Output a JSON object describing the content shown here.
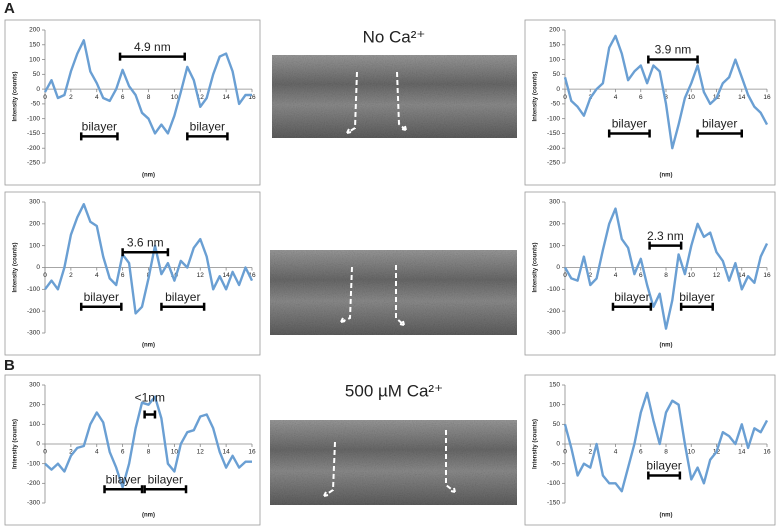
{
  "figure": {
    "panel_a": "A",
    "panel_b": "B",
    "condition_a": "No Ca²⁺",
    "condition_b": "500 µM Ca²⁺"
  },
  "chart_data": [
    {
      "type": "line",
      "ylabel": "Intensity (counts)",
      "xlabel": "(nm)",
      "xlim": [
        0,
        16
      ],
      "xticks": [
        0,
        2,
        4,
        6,
        8,
        10,
        12,
        14,
        16
      ],
      "ylim": [
        -250,
        200
      ],
      "yticks": [
        -250,
        -200,
        -150,
        -100,
        -50,
        0,
        50,
        100,
        150,
        200
      ],
      "grid": false,
      "x": [
        0,
        0.5,
        1,
        1.5,
        2,
        2.5,
        3,
        3.5,
        4,
        4.5,
        5,
        5.5,
        6,
        6.5,
        7,
        7.5,
        8,
        8.5,
        9,
        9.5,
        10,
        10.5,
        11,
        11.5,
        12,
        12.5,
        13,
        13.5,
        14,
        14.5,
        15,
        15.5,
        16
      ],
      "series": [
        {
          "color": "#6a9fd3",
          "values": [
            -10,
            30,
            -30,
            -20,
            60,
            120,
            165,
            60,
            20,
            -30,
            -40,
            0,
            65,
            10,
            -20,
            -80,
            -100,
            -150,
            -120,
            -150,
            -90,
            -10,
            75,
            30,
            -60,
            -30,
            50,
            110,
            120,
            60,
            -50,
            -20,
            -20
          ]
        }
      ],
      "annotations": [
        {
          "text": "4.9 nm",
          "x": [
            5.8,
            10.8
          ],
          "y": 110
        },
        {
          "text": "bilayer",
          "x": [
            2.8,
            5.6
          ],
          "y": -160
        },
        {
          "text": "bilayer",
          "x": [
            11,
            14.1
          ],
          "y": -160
        }
      ]
    },
    {
      "type": "line",
      "ylabel": "Intensity (counts)",
      "xlabel": "(nm)",
      "xlim": [
        0,
        16
      ],
      "xticks": [
        0,
        2,
        4,
        6,
        8,
        10,
        12,
        14,
        16
      ],
      "ylim": [
        -250,
        200
      ],
      "yticks": [
        -250,
        -200,
        -150,
        -100,
        -50,
        0,
        50,
        100,
        150,
        200
      ],
      "grid": false,
      "x": [
        0,
        0.5,
        1,
        1.5,
        2,
        2.5,
        3,
        3.5,
        4,
        4.5,
        5,
        5.5,
        6,
        6.5,
        7,
        7.5,
        8,
        8.5,
        9,
        9.5,
        10,
        10.5,
        11,
        11.5,
        12,
        12.5,
        13,
        13.5,
        14,
        14.5,
        15,
        15.5,
        16
      ],
      "series": [
        {
          "color": "#6a9fd3",
          "values": [
            40,
            -40,
            -60,
            -90,
            -30,
            0,
            20,
            140,
            180,
            120,
            30,
            60,
            80,
            20,
            80,
            60,
            -50,
            -200,
            -120,
            -30,
            20,
            80,
            -10,
            -50,
            -30,
            20,
            40,
            100,
            40,
            -20,
            -60,
            -80,
            -120
          ]
        }
      ],
      "annotations": [
        {
          "text": "3.9 nm",
          "x": [
            6.6,
            10.5
          ],
          "y": 100
        },
        {
          "text": "bilayer",
          "x": [
            3.5,
            6.7
          ],
          "y": -150
        },
        {
          "text": "bilayer",
          "x": [
            10.5,
            14
          ],
          "y": -150
        }
      ]
    },
    {
      "type": "line",
      "ylabel": "Intensity (counts)",
      "xlabel": "(nm)",
      "xlim": [
        0,
        16
      ],
      "xticks": [
        0,
        2,
        4,
        6,
        8,
        10,
        12,
        14,
        16
      ],
      "ylim": [
        -300,
        300
      ],
      "yticks": [
        -300,
        -200,
        -100,
        0,
        100,
        200,
        300
      ],
      "grid": false,
      "x": [
        0,
        0.5,
        1,
        1.5,
        2,
        2.5,
        3,
        3.5,
        4,
        4.5,
        5,
        5.5,
        6,
        6.5,
        7,
        7.5,
        8,
        8.5,
        9,
        9.5,
        10,
        10.5,
        11,
        11.5,
        12,
        12.5,
        13,
        13.5,
        14,
        14.5,
        15,
        15.5,
        16
      ],
      "series": [
        {
          "color": "#6a9fd3",
          "values": [
            -100,
            -60,
            -100,
            0,
            150,
            230,
            290,
            210,
            190,
            50,
            -50,
            -80,
            60,
            20,
            -210,
            -180,
            -50,
            100,
            -30,
            20,
            -60,
            30,
            0,
            90,
            130,
            50,
            -100,
            -40,
            -100,
            -20,
            -80,
            0,
            -60
          ]
        }
      ],
      "annotations": [
        {
          "text": "3.6 nm",
          "x": [
            6,
            9.5
          ],
          "y": 70
        },
        {
          "text": "bilayer",
          "x": [
            2.8,
            5.9
          ],
          "y": -180
        },
        {
          "text": "bilayer",
          "x": [
            9,
            12.3
          ],
          "y": -180
        }
      ]
    },
    {
      "type": "line",
      "ylabel": "Intensity (counts)",
      "xlabel": "(nm)",
      "xlim": [
        0,
        16
      ],
      "xticks": [
        0,
        2,
        4,
        6,
        8,
        10,
        12,
        14,
        16
      ],
      "ylim": [
        -300,
        300
      ],
      "yticks": [
        -300,
        -200,
        -100,
        0,
        100,
        200,
        300
      ],
      "grid": false,
      "x": [
        0,
        0.5,
        1,
        1.5,
        2,
        2.5,
        3,
        3.5,
        4,
        4.5,
        5,
        5.5,
        6,
        6.5,
        7,
        7.5,
        8,
        8.5,
        9,
        9.5,
        10,
        10.5,
        11,
        11.5,
        12,
        12.5,
        13,
        13.5,
        14,
        14.5,
        15,
        15.5,
        16
      ],
      "series": [
        {
          "color": "#6a9fd3",
          "values": [
            0,
            -50,
            -60,
            50,
            -80,
            -50,
            80,
            200,
            270,
            130,
            90,
            -30,
            40,
            -80,
            -180,
            -120,
            -280,
            -150,
            60,
            -30,
            100,
            200,
            140,
            160,
            70,
            30,
            -60,
            20,
            -100,
            -40,
            -70,
            50,
            110
          ]
        }
      ],
      "annotations": [
        {
          "text": "2.3 nm",
          "x": [
            6.7,
            9.2
          ],
          "y": 100
        },
        {
          "text": "bilayer",
          "x": [
            3.8,
            6.8
          ],
          "y": -180
        },
        {
          "text": "bilayer",
          "x": [
            9.2,
            11.7
          ],
          "y": -180
        }
      ]
    },
    {
      "type": "line",
      "ylabel": "Intensity (counts)",
      "xlabel": "(nm)",
      "xlim": [
        0,
        16
      ],
      "xticks": [
        0,
        2,
        4,
        6,
        8,
        10,
        12,
        14,
        16
      ],
      "ylim": [
        -300,
        300
      ],
      "yticks": [
        -300,
        -200,
        -100,
        0,
        100,
        200,
        300
      ],
      "grid": false,
      "x": [
        0,
        0.5,
        1,
        1.5,
        2,
        2.5,
        3,
        3.5,
        4,
        4.5,
        5,
        5.5,
        6,
        6.5,
        7,
        7.5,
        8,
        8.5,
        9,
        9.5,
        10,
        10.5,
        11,
        11.5,
        12,
        12.5,
        13,
        13.5,
        14,
        14.5,
        15,
        15.5,
        16
      ],
      "series": [
        {
          "color": "#6a9fd3",
          "values": [
            -100,
            -130,
            -100,
            -140,
            -60,
            -20,
            -10,
            100,
            160,
            110,
            -40,
            -120,
            -220,
            -100,
            80,
            210,
            200,
            240,
            130,
            -100,
            -140,
            0,
            60,
            70,
            140,
            150,
            80,
            -40,
            -120,
            -60,
            -120,
            -90,
            -90
          ]
        }
      ],
      "annotations": [
        {
          "text": "<1nm",
          "x": [
            7.7,
            8.5
          ],
          "y": 150
        },
        {
          "text": "bilayer",
          "x": [
            4.6,
            7.5
          ],
          "y": -230
        },
        {
          "text": "bilayer",
          "x": [
            7.7,
            10.9
          ],
          "y": -230
        }
      ]
    },
    {
      "type": "line",
      "ylabel": "Intensity (counts)",
      "xlabel": "(nm)",
      "xlim": [
        0,
        16
      ],
      "xticks": [
        0,
        2,
        4,
        6,
        8,
        10,
        12,
        14,
        16
      ],
      "ylim": [
        -150,
        150
      ],
      "yticks": [
        -150,
        -100,
        -50,
        0,
        50,
        100,
        150
      ],
      "grid": false,
      "x": [
        0,
        0.5,
        1,
        1.5,
        2,
        2.5,
        3,
        3.5,
        4,
        4.5,
        5,
        5.5,
        6,
        6.5,
        7,
        7.5,
        8,
        8.5,
        9,
        9.5,
        10,
        10.5,
        11,
        11.5,
        12,
        12.5,
        13,
        13.5,
        14,
        14.5,
        15,
        15.5,
        16
      ],
      "series": [
        {
          "color": "#6a9fd3",
          "values": [
            50,
            -10,
            -80,
            -50,
            -60,
            0,
            -80,
            -100,
            -100,
            -120,
            -60,
            0,
            80,
            130,
            60,
            0,
            80,
            110,
            100,
            0,
            -90,
            -60,
            -100,
            -40,
            -20,
            30,
            20,
            0,
            50,
            -10,
            40,
            30,
            60
          ]
        }
      ],
      "annotations": [
        {
          "text": "bilayer",
          "x": [
            6.6,
            9.1
          ],
          "y": -80
        }
      ]
    }
  ]
}
